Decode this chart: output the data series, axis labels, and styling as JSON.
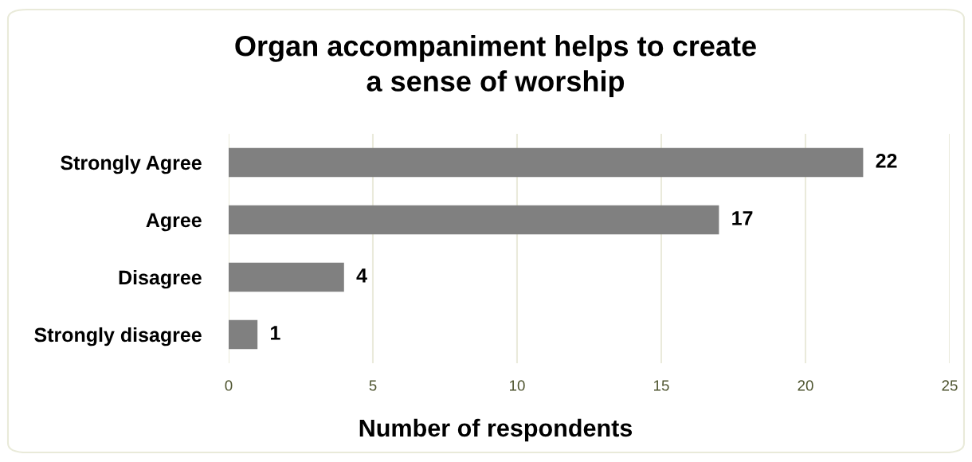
{
  "chart_data": {
    "type": "bar",
    "orientation": "horizontal",
    "title": "Organ accompaniment helps to create\na sense of worship",
    "xlabel": "Number of respondents",
    "categories": [
      "Strongly Agree",
      "Agree",
      "Disagree",
      "Strongly disagree"
    ],
    "values": [
      22,
      17,
      4,
      1
    ],
    "color": "#808080",
    "xlim": [
      0,
      25
    ],
    "xticks": [
      0,
      5,
      10,
      15,
      20,
      25
    ],
    "grid": "x",
    "data_labels": true,
    "legend": false
  }
}
